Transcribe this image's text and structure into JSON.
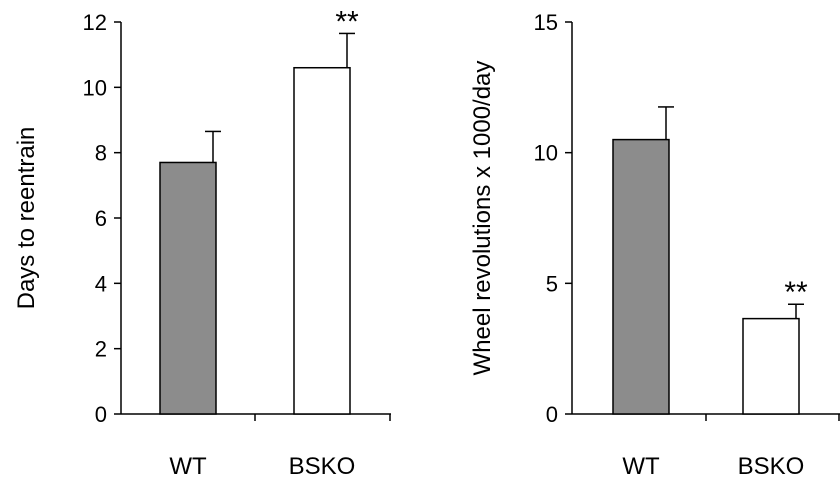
{
  "chart_data": [
    {
      "type": "bar",
      "title": "",
      "xlabel": "",
      "ylabel": "Days  to reentrain",
      "ylim": [
        0,
        12
      ],
      "yticks": [
        0,
        2,
        4,
        6,
        8,
        10,
        12
      ],
      "grid": false,
      "legend": "none",
      "categories": [
        "WT",
        "BSKO"
      ],
      "values": [
        7.7,
        10.6
      ],
      "errors": [
        0.95,
        1.05
      ],
      "colors": [
        "#8c8c8c",
        "#ffffff"
      ],
      "significance": [
        "",
        "**"
      ]
    },
    {
      "type": "bar",
      "title": "",
      "xlabel": "",
      "ylabel": "Wheel revolutions x 1000/day",
      "ylim": [
        0,
        15
      ],
      "yticks": [
        0,
        5,
        10,
        15
      ],
      "grid": false,
      "legend": "none",
      "categories": [
        "WT",
        "BSKO"
      ],
      "values": [
        10.5,
        3.65
      ],
      "errors": [
        1.25,
        0.55
      ],
      "colors": [
        "#8c8c8c",
        "#ffffff"
      ],
      "significance": [
        "",
        "**"
      ]
    }
  ]
}
